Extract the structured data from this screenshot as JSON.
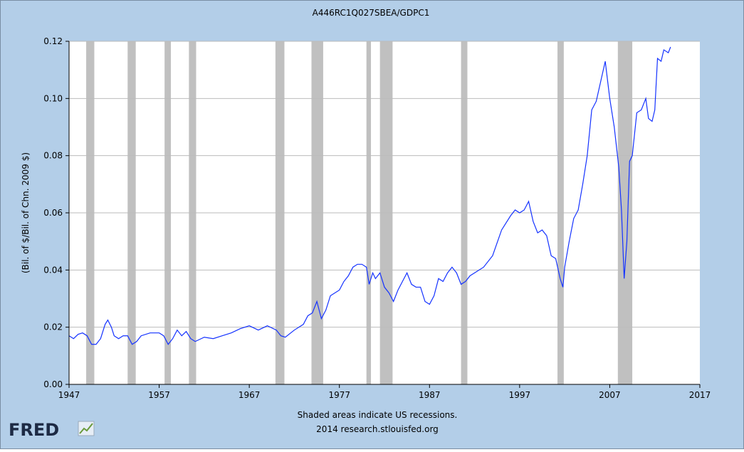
{
  "chart_data": {
    "type": "line",
    "title": "A446RC1Q027SBEA/GDPC1",
    "y_label": "(Bil. of $/Bil. of Chn. 2009 $)",
    "note": "Shaded areas indicate US recessions.",
    "source": "2014 research.stlouisfed.org",
    "logo": "FRED",
    "xlim": [
      1947,
      2017
    ],
    "xticks": [
      1947,
      1957,
      1967,
      1977,
      1987,
      1997,
      2007,
      2017
    ],
    "ylim": [
      0,
      0.12
    ],
    "yticks": [
      {
        "value": 0,
        "label": "0.00"
      },
      0.02,
      0.04,
      0.06,
      0.08,
      {
        "value": 0.1,
        "label": "0.10"
      },
      0.12
    ],
    "grid": true,
    "recession_color": "#c0c0c0",
    "recessions": [
      [
        1948.9,
        1949.8
      ],
      [
        1953.5,
        1954.4
      ],
      [
        1957.6,
        1958.3
      ],
      [
        1960.3,
        1961.1
      ],
      [
        1969.9,
        1970.9
      ],
      [
        1973.9,
        1975.2
      ],
      [
        1980.0,
        1980.5
      ],
      [
        1981.5,
        1982.9
      ],
      [
        1990.5,
        1991.2
      ],
      [
        2001.2,
        2001.9
      ],
      [
        2007.9,
        2009.5
      ]
    ],
    "series": [
      {
        "name": "A446RC1Q027SBEA/GDPC1",
        "color": "#1432ff",
        "x": [
          1947,
          1947.5,
          1948,
          1948.5,
          1949,
          1949.5,
          1950,
          1950.5,
          1951,
          1951.3,
          1951.7,
          1952,
          1952.5,
          1953,
          1953.5,
          1954,
          1954.5,
          1955,
          1956,
          1957,
          1957.5,
          1958,
          1958.5,
          1959,
          1959.5,
          1960,
          1960.5,
          1961,
          1962,
          1963,
          1964,
          1965,
          1966,
          1967,
          1968,
          1969,
          1970,
          1970.5,
          1971,
          1972,
          1973,
          1973.5,
          1974,
          1974.5,
          1975,
          1975.5,
          1976,
          1977,
          1977.5,
          1978,
          1978.5,
          1979,
          1979.5,
          1980,
          1980.3,
          1980.7,
          1981,
          1981.5,
          1982,
          1982.5,
          1983,
          1983.5,
          1984,
          1984.5,
          1985,
          1985.5,
          1986,
          1986.5,
          1987,
          1987.5,
          1988,
          1988.5,
          1989,
          1989.5,
          1990,
          1990.5,
          1991,
          1991.5,
          1992,
          1993,
          1994,
          1995,
          1996,
          1996.5,
          1997,
          1997.5,
          1998,
          1998.5,
          1999,
          1999.5,
          2000,
          2000.5,
          2001,
          2001.5,
          2001.8,
          2002,
          2002.5,
          2003,
          2003.5,
          2004,
          2004.5,
          2005,
          2005.5,
          2006,
          2006.5,
          2007,
          2007.5,
          2008,
          2008.3,
          2008.6,
          2008.9,
          2009.2,
          2009.5,
          2010,
          2010.5,
          2011,
          2011.3,
          2011.7,
          2012,
          2012.3,
          2012.7,
          2013,
          2013.5,
          2013.75
        ],
        "values": [
          0.017,
          0.016,
          0.0175,
          0.018,
          0.017,
          0.014,
          0.014,
          0.016,
          0.021,
          0.0225,
          0.02,
          0.017,
          0.016,
          0.017,
          0.017,
          0.014,
          0.015,
          0.017,
          0.018,
          0.018,
          0.017,
          0.014,
          0.016,
          0.019,
          0.017,
          0.0185,
          0.016,
          0.015,
          0.0165,
          0.016,
          0.017,
          0.018,
          0.0195,
          0.0205,
          0.019,
          0.0205,
          0.019,
          0.017,
          0.0165,
          0.019,
          0.021,
          0.024,
          0.025,
          0.029,
          0.023,
          0.026,
          0.031,
          0.033,
          0.036,
          0.038,
          0.041,
          0.042,
          0.042,
          0.041,
          0.035,
          0.039,
          0.037,
          0.039,
          0.034,
          0.032,
          0.029,
          0.033,
          0.036,
          0.039,
          0.035,
          0.034,
          0.034,
          0.029,
          0.028,
          0.031,
          0.037,
          0.036,
          0.039,
          0.041,
          0.039,
          0.035,
          0.036,
          0.038,
          0.039,
          0.041,
          0.045,
          0.054,
          0.059,
          0.061,
          0.06,
          0.061,
          0.064,
          0.057,
          0.053,
          0.054,
          0.052,
          0.045,
          0.044,
          0.037,
          0.034,
          0.041,
          0.05,
          0.058,
          0.061,
          0.07,
          0.08,
          0.096,
          0.099,
          0.106,
          0.113,
          0.1,
          0.09,
          0.076,
          0.061,
          0.037,
          0.05,
          0.078,
          0.08,
          0.095,
          0.096,
          0.1,
          0.093,
          0.092,
          0.096,
          0.114,
          0.113,
          0.117,
          0.116,
          0.118
        ]
      }
    ]
  }
}
